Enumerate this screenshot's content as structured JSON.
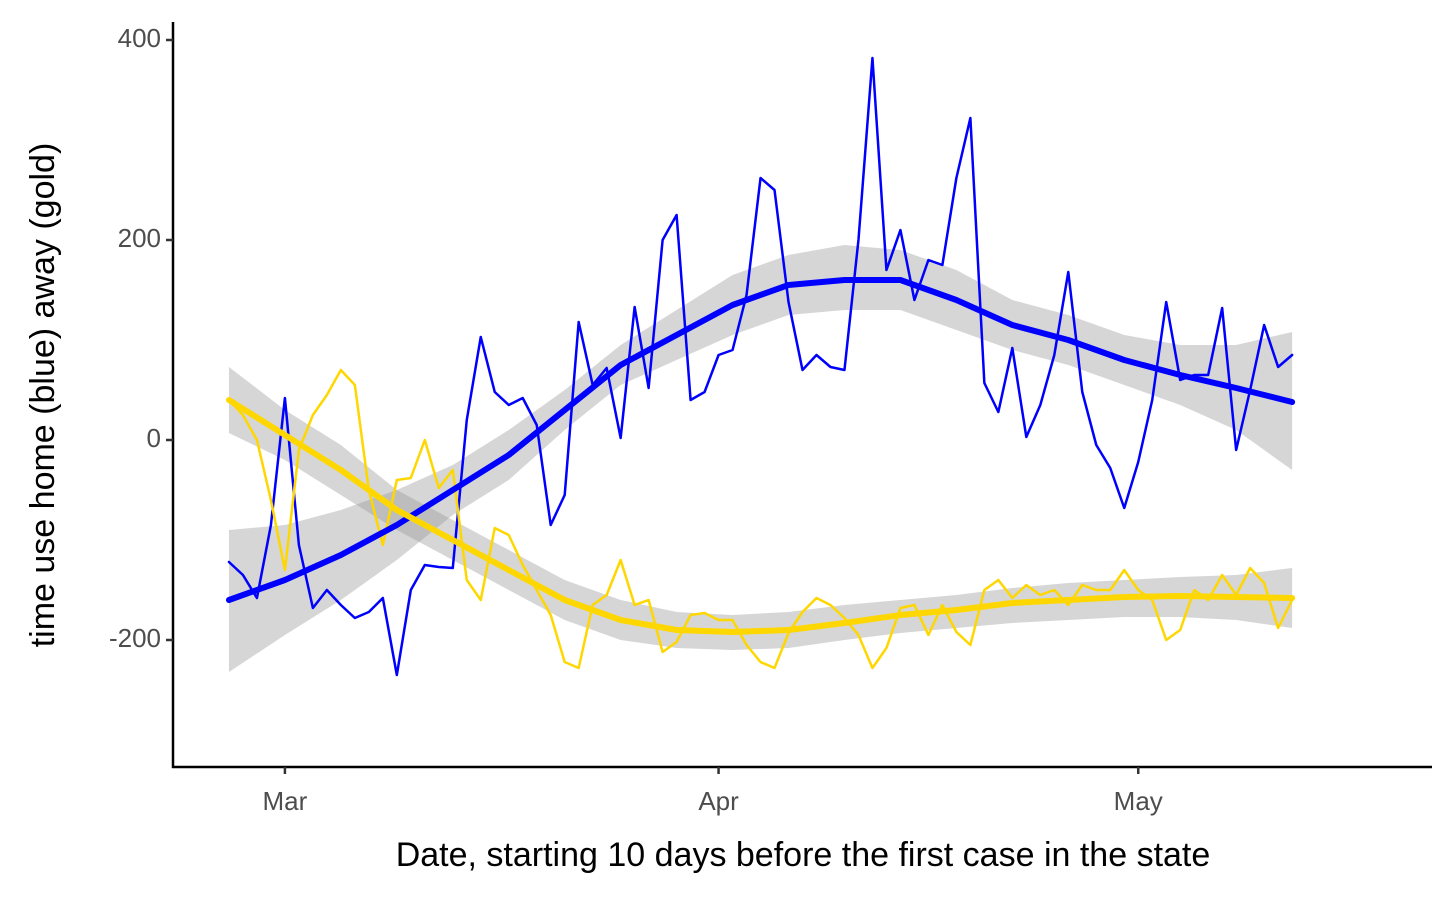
{
  "chart_data": {
    "type": "line",
    "xlabel": "Date, starting 10 days before the first case in the state",
    "ylabel": "time use home (blue) away (gold)",
    "xlim": [
      -4,
      86
    ],
    "ylim": [
      -327,
      418
    ],
    "xticks": [
      {
        "value": 4,
        "label": "Mar"
      },
      {
        "value": 35,
        "label": "Apr"
      },
      {
        "value": 65,
        "label": "May"
      }
    ],
    "yticks": [
      {
        "value": -200,
        "label": "-200"
      },
      0,
      200,
      400
    ],
    "grid": false,
    "series": [
      {
        "color": "#0000ff",
        "width": 2.5,
        "x": [
          0,
          1,
          2,
          3,
          4,
          5,
          6,
          7,
          8,
          9,
          10,
          11,
          12,
          13,
          14,
          15,
          16,
          17,
          18,
          19,
          20,
          21,
          22,
          23,
          24,
          25,
          26,
          27,
          28,
          29,
          30,
          31,
          32,
          33,
          34,
          35,
          36,
          37,
          38,
          39,
          40,
          41,
          42,
          43,
          44,
          45,
          46,
          47,
          48,
          49,
          50,
          51,
          52,
          53,
          54,
          55,
          56,
          57,
          58,
          59,
          60,
          61,
          62,
          63,
          64,
          65,
          66,
          67,
          68,
          69,
          70,
          71,
          72,
          73,
          74,
          75,
          76
        ],
        "values": [
          -122,
          -135,
          -158,
          -85,
          42,
          -105,
          -168,
          -150,
          -165,
          -178,
          -172,
          -158,
          -235,
          -150,
          -125,
          -127,
          -128,
          20,
          103,
          48,
          35,
          42,
          15,
          -85,
          -55,
          118,
          55,
          72,
          2,
          133,
          52,
          200,
          225,
          40,
          48,
          85,
          90,
          145,
          262,
          250,
          138,
          70,
          85,
          73,
          70,
          200,
          382,
          170,
          210,
          140,
          180,
          175,
          262,
          322,
          57,
          28,
          92,
          3,
          35,
          85,
          168,
          48,
          -5,
          -28,
          -68,
          -22,
          40,
          138,
          60,
          65,
          65,
          132,
          -10,
          50,
          115,
          73,
          85
        ]
      },
      {
        "color": "#ffd700",
        "width": 2.5,
        "x": [
          0,
          1,
          2,
          3,
          4,
          5,
          6,
          7,
          8,
          9,
          10,
          11,
          12,
          13,
          14,
          15,
          16,
          17,
          18,
          19,
          20,
          21,
          22,
          23,
          24,
          25,
          26,
          27,
          28,
          29,
          30,
          31,
          32,
          33,
          34,
          35,
          36,
          37,
          38,
          39,
          40,
          41,
          42,
          43,
          44,
          45,
          46,
          47,
          48,
          49,
          50,
          51,
          52,
          53,
          54,
          55,
          56,
          57,
          58,
          59,
          60,
          61,
          62,
          63,
          64,
          65,
          66,
          67,
          68,
          69,
          70,
          71,
          72,
          73,
          74,
          75,
          76
        ],
        "values": [
          40,
          25,
          0,
          -60,
          -130,
          -10,
          25,
          45,
          70,
          55,
          -50,
          -105,
          -40,
          -38,
          0,
          -48,
          -30,
          -140,
          -160,
          -88,
          -95,
          -125,
          -150,
          -175,
          -222,
          -228,
          -165,
          -155,
          -120,
          -165,
          -160,
          -212,
          -202,
          -175,
          -173,
          -180,
          -180,
          -205,
          -222,
          -228,
          -193,
          -172,
          -158,
          -165,
          -178,
          -195,
          -228,
          -208,
          -168,
          -165,
          -195,
          -165,
          -192,
          -205,
          -150,
          -140,
          -158,
          -145,
          -155,
          -150,
          -165,
          -145,
          -150,
          -150,
          -130,
          -150,
          -160,
          -200,
          -190,
          -150,
          -160,
          -135,
          -155,
          -128,
          -143,
          -188,
          -160
        ]
      },
      {
        "color": "#0000ff",
        "width": 6,
        "band_color": "#999999",
        "x": [
          0,
          4,
          8,
          12,
          16,
          20,
          24,
          28,
          32,
          36,
          40,
          44,
          48,
          52,
          56,
          60,
          64,
          68,
          72,
          76
        ],
        "values": [
          -160,
          -140,
          -115,
          -85,
          -50,
          -15,
          30,
          75,
          105,
          135,
          155,
          160,
          160,
          140,
          115,
          100,
          80,
          65,
          52,
          38
        ],
        "upper": [
          -90,
          -85,
          -70,
          -50,
          -25,
          10,
          50,
          95,
          130,
          165,
          185,
          195,
          190,
          170,
          140,
          125,
          105,
          95,
          95,
          108
        ],
        "lower": [
          -232,
          -195,
          -160,
          -120,
          -75,
          -40,
          10,
          55,
          80,
          105,
          125,
          130,
          130,
          110,
          90,
          75,
          55,
          35,
          10,
          -30
        ]
      },
      {
        "color": "#ffd700",
        "width": 6,
        "band_color": "#999999",
        "x": [
          0,
          4,
          8,
          12,
          16,
          20,
          24,
          28,
          32,
          36,
          40,
          44,
          48,
          52,
          56,
          60,
          64,
          68,
          72,
          76
        ],
        "values": [
          40,
          5,
          -30,
          -70,
          -100,
          -130,
          -160,
          -180,
          -190,
          -192,
          -190,
          -183,
          -175,
          -170,
          -163,
          -160,
          -157,
          -156,
          -157,
          -158
        ],
        "upper": [
          73,
          30,
          -5,
          -50,
          -80,
          -110,
          -140,
          -160,
          -172,
          -175,
          -172,
          -165,
          -160,
          -155,
          -148,
          -143,
          -140,
          -137,
          -135,
          -128
        ],
        "lower": [
          7,
          -20,
          -55,
          -90,
          -120,
          -150,
          -180,
          -200,
          -208,
          -210,
          -208,
          -200,
          -193,
          -188,
          -183,
          -180,
          -177,
          -177,
          -180,
          -188
        ]
      }
    ]
  }
}
